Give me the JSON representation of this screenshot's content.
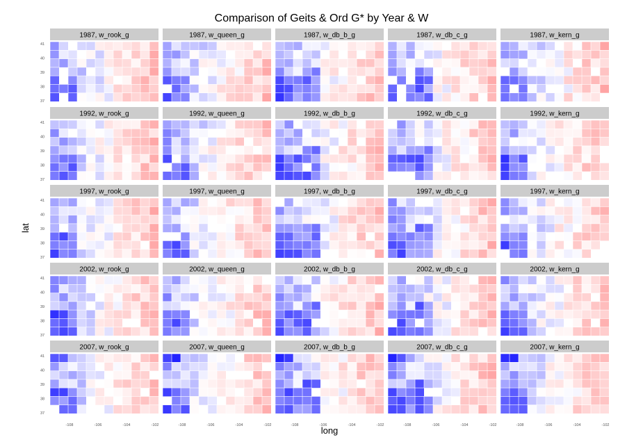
{
  "chart_data": {
    "type": "heatmap",
    "title": "Comparison of Geits & Ord G* by Year & W",
    "xlabel": "long",
    "ylabel": "lat",
    "x_ticks": [
      "-108",
      "-106",
      "-104",
      "-102"
    ],
    "y_ticks": [
      "41",
      "40",
      "39",
      "38",
      "37"
    ],
    "xlim": [
      -109,
      -102
    ],
    "ylim": [
      36.8,
      41.2
    ],
    "color_scale": {
      "low": "#0000ff",
      "mid": "#ffffff",
      "high": "#ff0000"
    },
    "grid": false,
    "legend": "none",
    "panels": [
      {
        "title": "1987, w_rook_g",
        "year": 1987,
        "weight": "w_rook_g"
      },
      {
        "title": "1987, w_queen_g",
        "year": 1987,
        "weight": "w_queen_g"
      },
      {
        "title": "1987, w_db_b_g",
        "year": 1987,
        "weight": "w_db_b_g"
      },
      {
        "title": "1987, w_db_c_g",
        "year": 1987,
        "weight": "w_db_c_g"
      },
      {
        "title": "1987, w_kern_g",
        "year": 1987,
        "weight": "w_kern_g"
      },
      {
        "title": "1992, w_rook_g",
        "year": 1992,
        "weight": "w_rook_g"
      },
      {
        "title": "1992, w_queen_g",
        "year": 1992,
        "weight": "w_queen_g"
      },
      {
        "title": "1992, w_db_b_g",
        "year": 1992,
        "weight": "w_db_b_g"
      },
      {
        "title": "1992, w_db_c_g",
        "year": 1992,
        "weight": "w_db_c_g"
      },
      {
        "title": "1992, w_kern_g",
        "year": 1992,
        "weight": "w_kern_g"
      },
      {
        "title": "1997, w_rook_g",
        "year": 1997,
        "weight": "w_rook_g"
      },
      {
        "title": "1997, w_queen_g",
        "year": 1997,
        "weight": "w_queen_g"
      },
      {
        "title": "1997, w_db_b_g",
        "year": 1997,
        "weight": "w_db_b_g"
      },
      {
        "title": "1997, w_db_c_g",
        "year": 1997,
        "weight": "w_db_c_g"
      },
      {
        "title": "1997, w_kern_g",
        "year": 1997,
        "weight": "w_kern_g"
      },
      {
        "title": "2002, w_rook_g",
        "year": 2002,
        "weight": "w_rook_g"
      },
      {
        "title": "2002, w_queen_g",
        "year": 2002,
        "weight": "w_queen_g"
      },
      {
        "title": "2002, w_db_b_g",
        "year": 2002,
        "weight": "w_db_b_g"
      },
      {
        "title": "2002, w_db_c_g",
        "year": 2002,
        "weight": "w_db_c_g"
      },
      {
        "title": "2002, w_kern_g",
        "year": 2002,
        "weight": "w_kern_g"
      },
      {
        "title": "2007, w_rook_g",
        "year": 2007,
        "weight": "w_rook_g"
      },
      {
        "title": "2007, w_queen_g",
        "year": 2007,
        "weight": "w_queen_g"
      },
      {
        "title": "2007, w_db_b_g",
        "year": 2007,
        "weight": "w_db_b_g"
      },
      {
        "title": "2007, w_db_c_g",
        "year": 2007,
        "weight": "w_db_c_g"
      },
      {
        "title": "2007, w_kern_g",
        "year": 2007,
        "weight": "w_kern_g"
      }
    ]
  }
}
